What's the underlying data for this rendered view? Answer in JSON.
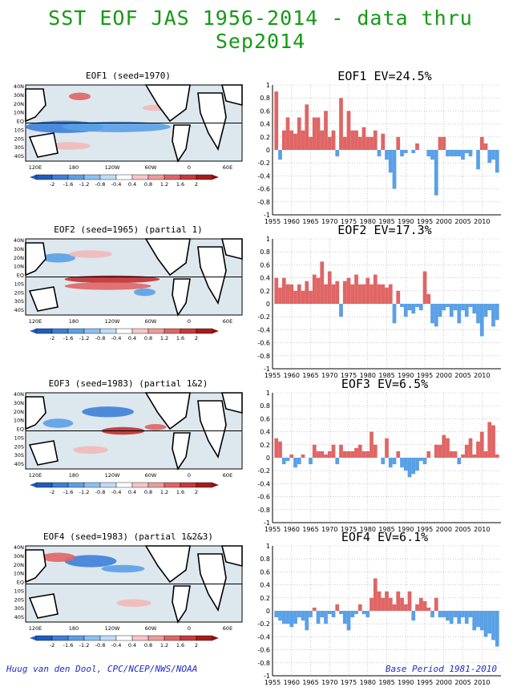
{
  "title": "SST EOF JAS 1956-2014 - data thru Sep2014",
  "footer": {
    "left": "Huug van den Dool, CPC/NCEP/NWS/NOAA",
    "right": "Base Period 1981-2010"
  },
  "map": {
    "lat_labels": [
      "40N",
      "30N",
      "20N",
      "10N",
      "EQ",
      "10S",
      "20S",
      "30S",
      "40S"
    ],
    "lon_labels": [
      "120E",
      "180",
      "120W",
      "60W",
      "0",
      "60E"
    ],
    "colorbar_labels": [
      "-2",
      "-1.6",
      "-1.2",
      "-0.8",
      "-0.4",
      "0.4",
      "0.8",
      "1.2",
      "1.6",
      "2"
    ]
  },
  "colors": {
    "positive": "#e06565",
    "negative": "#5aa0e6",
    "title": "#149a14",
    "footer": "#1e2cc8",
    "ocean": "#dde7ee"
  },
  "panels": [
    {
      "map_title": "EOF1  (seed=1970)",
      "bar_title": "EOF1  EV=24.5%"
    },
    {
      "map_title": "EOF2  (seed=1965) (partial 1)",
      "bar_title": "EOF2  EV=17.3%"
    },
    {
      "map_title": "EOF3  (seed=1983) (partial 1&2)",
      "bar_title": "EOF3  EV=6.5%"
    },
    {
      "map_title": "EOF4  (seed=1983) (partial 1&2&3)",
      "bar_title": "EOF4  EV=6.1%"
    }
  ],
  "chart_data": [
    {
      "type": "bar",
      "title": "EOF1  EV=24.5%",
      "x": [
        1956,
        1957,
        1958,
        1959,
        1960,
        1961,
        1962,
        1963,
        1964,
        1965,
        1966,
        1967,
        1968,
        1969,
        1970,
        1971,
        1972,
        1973,
        1974,
        1975,
        1976,
        1977,
        1978,
        1979,
        1980,
        1981,
        1982,
        1983,
        1984,
        1985,
        1986,
        1987,
        1988,
        1989,
        1990,
        1991,
        1992,
        1993,
        1994,
        1995,
        1996,
        1997,
        1998,
        1999,
        2000,
        2001,
        2002,
        2003,
        2004,
        2005,
        2006,
        2007,
        2008,
        2009,
        2010,
        2011,
        2012,
        2013,
        2014
      ],
      "values": [
        0.9,
        -0.15,
        0.3,
        0.5,
        0.3,
        0.25,
        0.5,
        0.3,
        0.7,
        0.2,
        0.5,
        0.5,
        0.3,
        0.6,
        0.2,
        0.3,
        -0.1,
        0.8,
        0.2,
        0.6,
        0.3,
        0.3,
        0.2,
        0.35,
        0.2,
        0.2,
        0.3,
        -0.1,
        0.25,
        -0.15,
        -0.35,
        -0.6,
        0.2,
        -0.1,
        -0.05,
        0.0,
        -0.05,
        0.1,
        0.0,
        0.0,
        -0.1,
        -0.15,
        -0.7,
        0.2,
        0.2,
        -0.1,
        -0.1,
        -0.1,
        -0.1,
        -0.15,
        -0.05,
        -0.1,
        0.0,
        -0.3,
        0.2,
        0.1,
        -0.2,
        -0.15,
        -0.35
      ],
      "xticks": [
        "1955",
        "1960",
        "1965",
        "1970",
        "1975",
        "1980",
        "1985",
        "1990",
        "1995",
        "2000",
        "2005",
        "2010"
      ],
      "yticks": [
        "1",
        "0.8",
        "0.6",
        "0.4",
        "0.2",
        "0",
        "-0.2",
        "-0.4",
        "-0.6",
        "-0.8",
        "-1"
      ],
      "ylim": [
        -1,
        1
      ]
    },
    {
      "type": "bar",
      "title": "EOF2  EV=17.3%",
      "x": [
        1956,
        1957,
        1958,
        1959,
        1960,
        1961,
        1962,
        1963,
        1964,
        1965,
        1966,
        1967,
        1968,
        1969,
        1970,
        1971,
        1972,
        1973,
        1974,
        1975,
        1976,
        1977,
        1978,
        1979,
        1980,
        1981,
        1982,
        1983,
        1984,
        1985,
        1986,
        1987,
        1988,
        1989,
        1990,
        1991,
        1992,
        1993,
        1994,
        1995,
        1996,
        1997,
        1998,
        1999,
        2000,
        2001,
        2002,
        2003,
        2004,
        2005,
        2006,
        2007,
        2008,
        2009,
        2010,
        2011,
        2012,
        2013,
        2014
      ],
      "values": [
        0.4,
        0.25,
        0.4,
        0.3,
        0.3,
        0.2,
        0.3,
        0.2,
        0.35,
        0.2,
        0.45,
        0.4,
        0.65,
        0.3,
        0.5,
        0.3,
        0.35,
        -0.2,
        0.35,
        0.4,
        0.3,
        0.45,
        0.3,
        0.3,
        0.4,
        0.3,
        0.45,
        0.3,
        0.3,
        0.25,
        0.3,
        -0.3,
        0.2,
        -0.05,
        -0.2,
        -0.1,
        -0.15,
        -0.05,
        -0.1,
        0.5,
        0.15,
        -0.3,
        -0.35,
        -0.2,
        -0.1,
        -0.05,
        -0.2,
        -0.1,
        -0.3,
        -0.1,
        -0.2,
        -0.05,
        -0.15,
        -0.3,
        -0.5,
        -0.2,
        -0.1,
        -0.35,
        -0.25
      ],
      "xticks": [
        "1955",
        "1960",
        "1965",
        "1970",
        "1975",
        "1980",
        "1985",
        "1990",
        "1995",
        "2000",
        "2005",
        "2010"
      ],
      "yticks": [
        "1",
        "0.8",
        "0.6",
        "0.4",
        "0.2",
        "0",
        "-0.2",
        "-0.4",
        "-0.6",
        "-0.8",
        "-1"
      ],
      "ylim": [
        -1,
        1
      ]
    },
    {
      "type": "bar",
      "title": "EOF3  EV=6.5%",
      "x": [
        1956,
        1957,
        1958,
        1959,
        1960,
        1961,
        1962,
        1963,
        1964,
        1965,
        1966,
        1967,
        1968,
        1969,
        1970,
        1971,
        1972,
        1973,
        1974,
        1975,
        1976,
        1977,
        1978,
        1979,
        1980,
        1981,
        1982,
        1983,
        1984,
        1985,
        1986,
        1987,
        1988,
        1989,
        1990,
        1991,
        1992,
        1993,
        1994,
        1995,
        1996,
        1997,
        1998,
        1999,
        2000,
        2001,
        2002,
        2003,
        2004,
        2005,
        2006,
        2007,
        2008,
        2009,
        2010,
        2011,
        2012,
        2013,
        2014
      ],
      "values": [
        0.3,
        0.25,
        -0.1,
        -0.05,
        0.05,
        -0.15,
        -0.1,
        0.05,
        0.0,
        -0.1,
        0.2,
        0.1,
        0.1,
        0.05,
        0.1,
        0.2,
        -0.1,
        0.2,
        0.1,
        0.1,
        0.1,
        0.15,
        0.2,
        0.1,
        0.1,
        0.4,
        0.2,
        0.0,
        -0.1,
        0.3,
        -0.15,
        -0.1,
        0.1,
        -0.15,
        -0.2,
        -0.3,
        -0.25,
        -0.2,
        -0.05,
        -0.1,
        0.1,
        0.0,
        0.2,
        0.2,
        0.35,
        0.3,
        0.1,
        0.1,
        -0.1,
        0.05,
        0.2,
        0.3,
        0.05,
        0.25,
        0.4,
        0.1,
        0.55,
        0.5,
        0.05
      ],
      "xticks": [
        "1955",
        "1960",
        "1965",
        "1970",
        "1975",
        "1980",
        "1985",
        "1990",
        "1995",
        "2000",
        "2005",
        "2010"
      ],
      "yticks": [
        "1",
        "0.8",
        "0.6",
        "0.4",
        "0.2",
        "0",
        "-0.2",
        "-0.4",
        "-0.6",
        "-0.8",
        "-1"
      ],
      "ylim": [
        -1,
        1
      ]
    },
    {
      "type": "bar",
      "title": "EOF4  EV=6.1%",
      "x": [
        1956,
        1957,
        1958,
        1959,
        1960,
        1961,
        1962,
        1963,
        1964,
        1965,
        1966,
        1967,
        1968,
        1969,
        1970,
        1971,
        1972,
        1973,
        1974,
        1975,
        1976,
        1977,
        1978,
        1979,
        1980,
        1981,
        1982,
        1983,
        1984,
        1985,
        1986,
        1987,
        1988,
        1989,
        1990,
        1991,
        1992,
        1993,
        1994,
        1995,
        1996,
        1997,
        1998,
        1999,
        2000,
        2001,
        2002,
        2003,
        2004,
        2005,
        2006,
        2007,
        2008,
        2009,
        2010,
        2011,
        2012,
        2013,
        2014
      ],
      "values": [
        -0.1,
        -0.15,
        -0.2,
        -0.2,
        -0.25,
        -0.2,
        -0.1,
        -0.15,
        -0.3,
        -0.1,
        0.05,
        -0.2,
        -0.1,
        -0.2,
        -0.05,
        -0.1,
        0.1,
        -0.05,
        -0.2,
        -0.3,
        -0.1,
        -0.05,
        0.1,
        -0.05,
        -0.1,
        0.2,
        0.5,
        0.3,
        0.2,
        0.3,
        0.2,
        0.1,
        0.3,
        0.2,
        0.1,
        0.3,
        -0.15,
        0.1,
        0.2,
        0.15,
        0.05,
        -0.1,
        0.2,
        -0.1,
        -0.1,
        -0.15,
        -0.2,
        -0.1,
        -0.2,
        -0.1,
        -0.2,
        -0.1,
        -0.3,
        -0.25,
        -0.3,
        -0.4,
        -0.35,
        -0.45,
        -0.55
      ],
      "xticks": [
        "1955",
        "1960",
        "1965",
        "1970",
        "1975",
        "1980",
        "1985",
        "1990",
        "1995",
        "2000",
        "2005",
        "2010"
      ],
      "yticks": [
        "1",
        "0.8",
        "0.6",
        "0.4",
        "0.2",
        "0",
        "-0.2",
        "-0.4",
        "-0.6",
        "-0.8",
        "-1"
      ],
      "ylim": [
        -1,
        1
      ]
    }
  ]
}
